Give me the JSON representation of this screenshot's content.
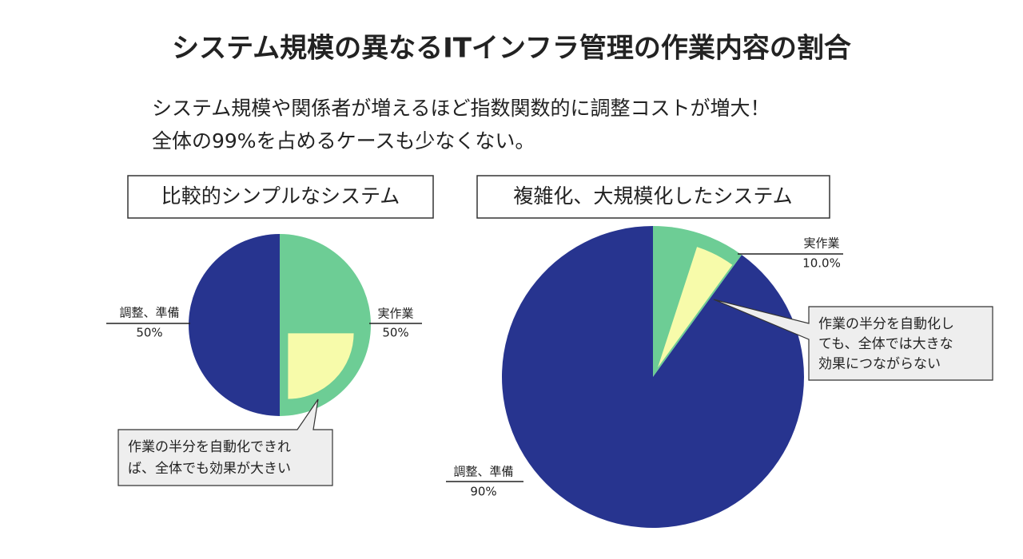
{
  "header": {
    "title": "システム規模の異なるITインフラ管理の作業内容の割合",
    "subtitle": [
      "システム規模や関係者が増えるほど指数関数的に調整コストが増大！",
      "全体の99%を占めるケースも少なくない。"
    ]
  },
  "chart_data": [
    {
      "type": "pie",
      "title": "比較的シンプルなシステム",
      "categories": [
        "実作業",
        "調整、準備"
      ],
      "values": [
        50,
        50
      ],
      "value_labels": [
        "50%",
        "50%"
      ],
      "colors": [
        "#6dcd95",
        "#27348f"
      ],
      "highlight_color": "#f7fbaa",
      "annotation": [
        "作業の半分を自動化できれ",
        "ば、全体でも効果が大きい"
      ]
    },
    {
      "type": "pie",
      "title": "複雑化、大規模化したシステム",
      "categories": [
        "実作業",
        "調整、準備"
      ],
      "values": [
        10.0,
        90
      ],
      "value_labels": [
        "10.0%",
        "90%"
      ],
      "colors": [
        "#6dcd95",
        "#27348f"
      ],
      "highlight_color": "#f7fbaa",
      "annotation": [
        "作業の半分を自動化し",
        "ても、全体では大きな",
        "効果につながらない"
      ]
    }
  ]
}
